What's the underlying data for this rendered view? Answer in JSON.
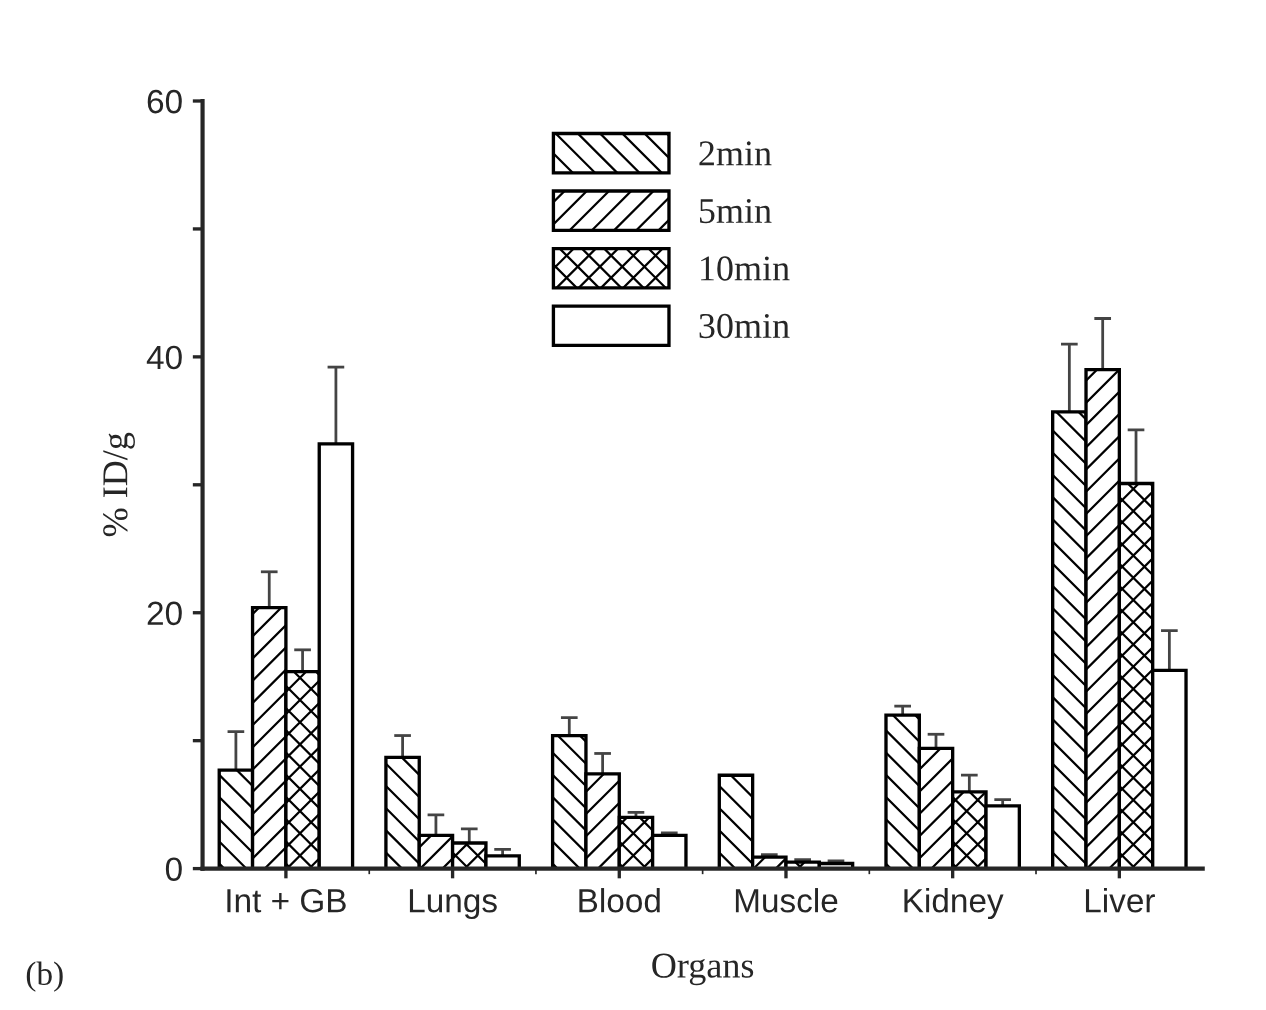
{
  "chart_data": {
    "type": "bar",
    "xlabel": "Organs",
    "ylabel": "% ID/g",
    "annotations": [
      "(b)"
    ],
    "categories": [
      "Int + GB",
      "Lungs",
      "Blood",
      "Muscle",
      "Kidney",
      "Liver"
    ],
    "ylim": [
      0,
      60
    ],
    "yticks": [
      0,
      {
        "value": 10,
        "label": null
      },
      20,
      {
        "value": 30,
        "label": null
      },
      40,
      {
        "value": 50,
        "label": null
      },
      60
    ],
    "legend": "top",
    "grid": false,
    "series": [
      {
        "name": "2min",
        "color": "#000000",
        "values": [
          7.7,
          8.7,
          10.4,
          7.3,
          12.0,
          35.7
        ],
        "errors": [
          [
            7.7,
            10.7
          ],
          [
            8.7,
            10.4
          ],
          [
            10.4,
            11.8
          ],
          null,
          [
            12.0,
            12.7
          ],
          [
            35.7,
            41.0
          ]
        ]
      },
      {
        "name": "5min",
        "color": "#000000",
        "values": [
          20.4,
          2.6,
          7.4,
          0.9,
          9.4,
          39.0
        ],
        "errors": [
          [
            20.4,
            23.2
          ],
          [
            2.6,
            4.2
          ],
          [
            7.4,
            9.0
          ],
          [
            0.9,
            1.1
          ],
          [
            9.4,
            10.5
          ],
          [
            39.0,
            43.0
          ]
        ]
      },
      {
        "name": "10min",
        "color": "#000000",
        "values": [
          15.4,
          2.0,
          4.0,
          0.5,
          6.0,
          30.1
        ],
        "errors": [
          [
            15.4,
            17.1
          ],
          [
            2.0,
            3.1
          ],
          [
            4.0,
            4.4
          ],
          [
            0.5,
            0.7
          ],
          [
            6.0,
            7.3
          ],
          [
            30.1,
            34.3
          ]
        ]
      },
      {
        "name": "30min",
        "color": "#000000",
        "values": [
          33.2,
          1.0,
          2.6,
          0.4,
          4.9,
          15.5
        ],
        "errors": [
          [
            33.2,
            39.2
          ],
          [
            1.0,
            1.5
          ],
          [
            2.6,
            2.8
          ],
          [
            0.4,
            0.6
          ],
          [
            4.9,
            5.4
          ],
          [
            15.5,
            18.6
          ]
        ]
      }
    ]
  }
}
